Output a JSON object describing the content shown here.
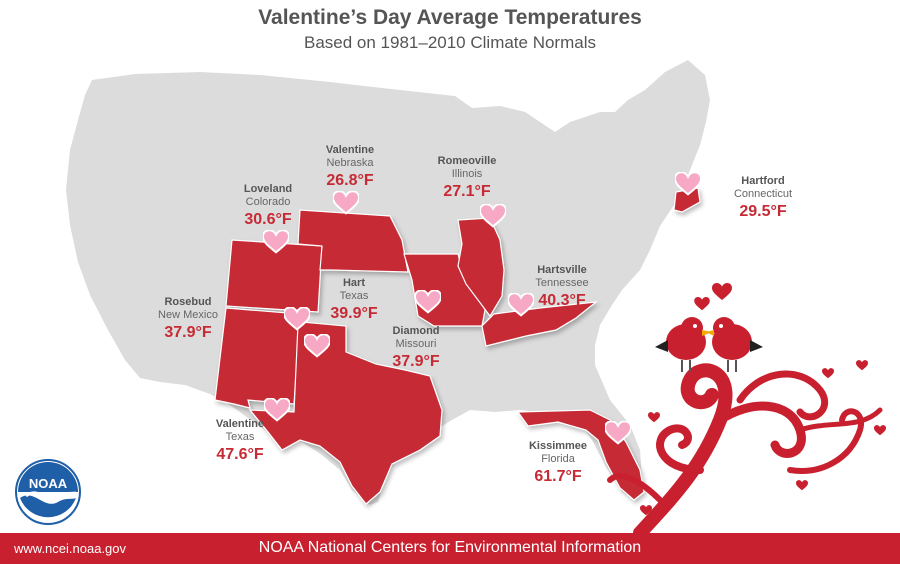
{
  "header": {
    "title": "Valentine’s Day Average Temperatures",
    "subtitle": "Based on 1981–2010 Climate Normals"
  },
  "locations": [
    {
      "city": "Valentine",
      "state": "Nebraska",
      "temp": "26.8°F"
    },
    {
      "city": "Romeoville",
      "state": "Illinois",
      "temp": "27.1°F"
    },
    {
      "city": "Loveland",
      "state": "Colorado",
      "temp": "30.6°F"
    },
    {
      "city": "Hartford",
      "state": "Connecticut",
      "temp": "29.5°F"
    },
    {
      "city": "Hartsville",
      "state": "Tennessee",
      "temp": "40.3°F"
    },
    {
      "city": "Hart",
      "state": "Texas",
      "temp": "39.9°F"
    },
    {
      "city": "Rosebud",
      "state": "New Mexico",
      "temp": "37.9°F"
    },
    {
      "city": "Diamond",
      "state": "Missouri",
      "temp": "37.9°F"
    },
    {
      "city": "Valentine",
      "state": "Texas",
      "temp": "47.6°F"
    },
    {
      "city": "Kissimmee",
      "state": "Florida",
      "temp": "61.7°F"
    }
  ],
  "logo": {
    "text": "NOAA"
  },
  "footer": {
    "url": "www.ncei.noaa.gov",
    "org": "NOAA National Centers for Environmental Information"
  },
  "colors": {
    "highlight_state": "#c62a35",
    "base_map": "#dcdcdc",
    "heart": "#f7a8c4",
    "footer": "#c8202f"
  }
}
